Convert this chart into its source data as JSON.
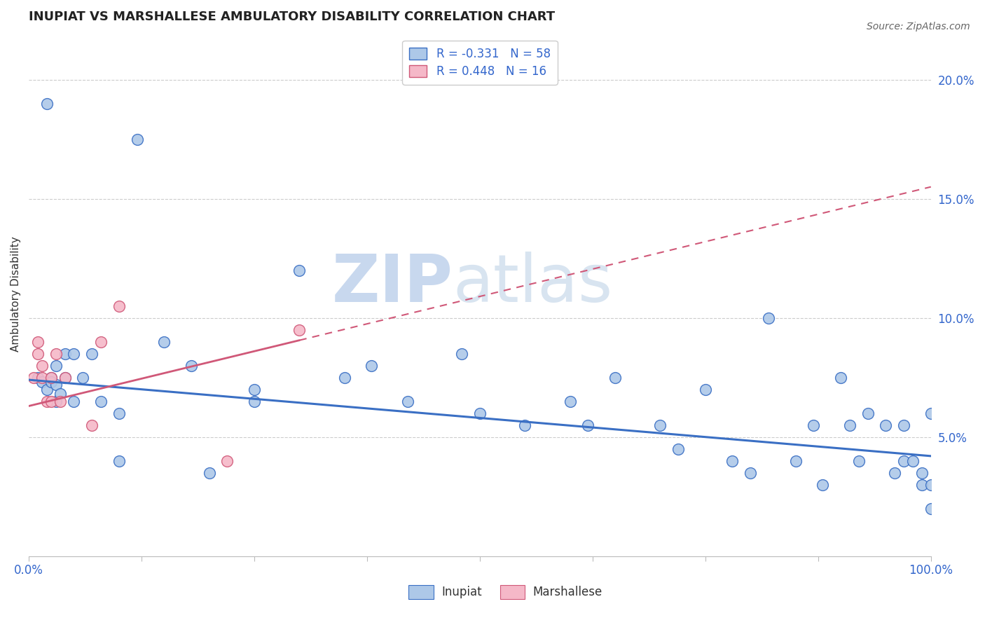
{
  "title": "INUPIAT VS MARSHALLESE AMBULATORY DISABILITY CORRELATION CHART",
  "source": "Source: ZipAtlas.com",
  "ylabel": "Ambulatory Disability",
  "ytick_labels": [
    "5.0%",
    "10.0%",
    "15.0%",
    "20.0%"
  ],
  "ytick_values": [
    0.05,
    0.1,
    0.15,
    0.2
  ],
  "xlim": [
    0.0,
    1.0
  ],
  "ylim": [
    0.0,
    0.22
  ],
  "legend_r1": "R = -0.331",
  "legend_n1": "N = 58",
  "legend_r2": "R = 0.448",
  "legend_n2": "N = 16",
  "inupiat_color": "#adc8e8",
  "marshallese_color": "#f5b8c8",
  "inupiat_line_color": "#3a6fc4",
  "marshallese_line_color": "#d05878",
  "inupiat_x": [
    0.01,
    0.015,
    0.02,
    0.02,
    0.025,
    0.025,
    0.03,
    0.03,
    0.03,
    0.035,
    0.04,
    0.04,
    0.05,
    0.05,
    0.06,
    0.07,
    0.08,
    0.1,
    0.12,
    0.15,
    0.18,
    0.2,
    0.25,
    0.25,
    0.3,
    0.35,
    0.38,
    0.42,
    0.48,
    0.5,
    0.55,
    0.6,
    0.62,
    0.65,
    0.7,
    0.72,
    0.75,
    0.78,
    0.8,
    0.82,
    0.85,
    0.87,
    0.88,
    0.9,
    0.91,
    0.92,
    0.93,
    0.95,
    0.96,
    0.97,
    0.97,
    0.98,
    0.99,
    0.99,
    1.0,
    1.0,
    1.0,
    0.1
  ],
  "inupiat_y": [
    0.075,
    0.073,
    0.19,
    0.07,
    0.075,
    0.073,
    0.08,
    0.065,
    0.072,
    0.068,
    0.085,
    0.075,
    0.085,
    0.065,
    0.075,
    0.085,
    0.065,
    0.04,
    0.175,
    0.09,
    0.08,
    0.035,
    0.07,
    0.065,
    0.12,
    0.075,
    0.08,
    0.065,
    0.085,
    0.06,
    0.055,
    0.065,
    0.055,
    0.075,
    0.055,
    0.045,
    0.07,
    0.04,
    0.035,
    0.1,
    0.04,
    0.055,
    0.03,
    0.075,
    0.055,
    0.04,
    0.06,
    0.055,
    0.035,
    0.04,
    0.055,
    0.04,
    0.035,
    0.03,
    0.06,
    0.03,
    0.02,
    0.06
  ],
  "marshallese_x": [
    0.005,
    0.01,
    0.01,
    0.015,
    0.015,
    0.02,
    0.025,
    0.025,
    0.03,
    0.035,
    0.04,
    0.07,
    0.08,
    0.1,
    0.22,
    0.3
  ],
  "marshallese_y": [
    0.075,
    0.085,
    0.09,
    0.075,
    0.08,
    0.065,
    0.075,
    0.065,
    0.085,
    0.065,
    0.075,
    0.055,
    0.09,
    0.105,
    0.04,
    0.095
  ],
  "inupiat_line_x": [
    0.0,
    1.0
  ],
  "inupiat_line_y": [
    0.074,
    0.042
  ],
  "marshallese_line_x": [
    0.0,
    1.0
  ],
  "marshallese_line_y": [
    0.063,
    0.155
  ],
  "background_color": "#ffffff",
  "grid_color": "#cccccc",
  "watermark_top": "ZIP",
  "watermark_bot": "atlas",
  "watermark_color": "#dde8f4"
}
